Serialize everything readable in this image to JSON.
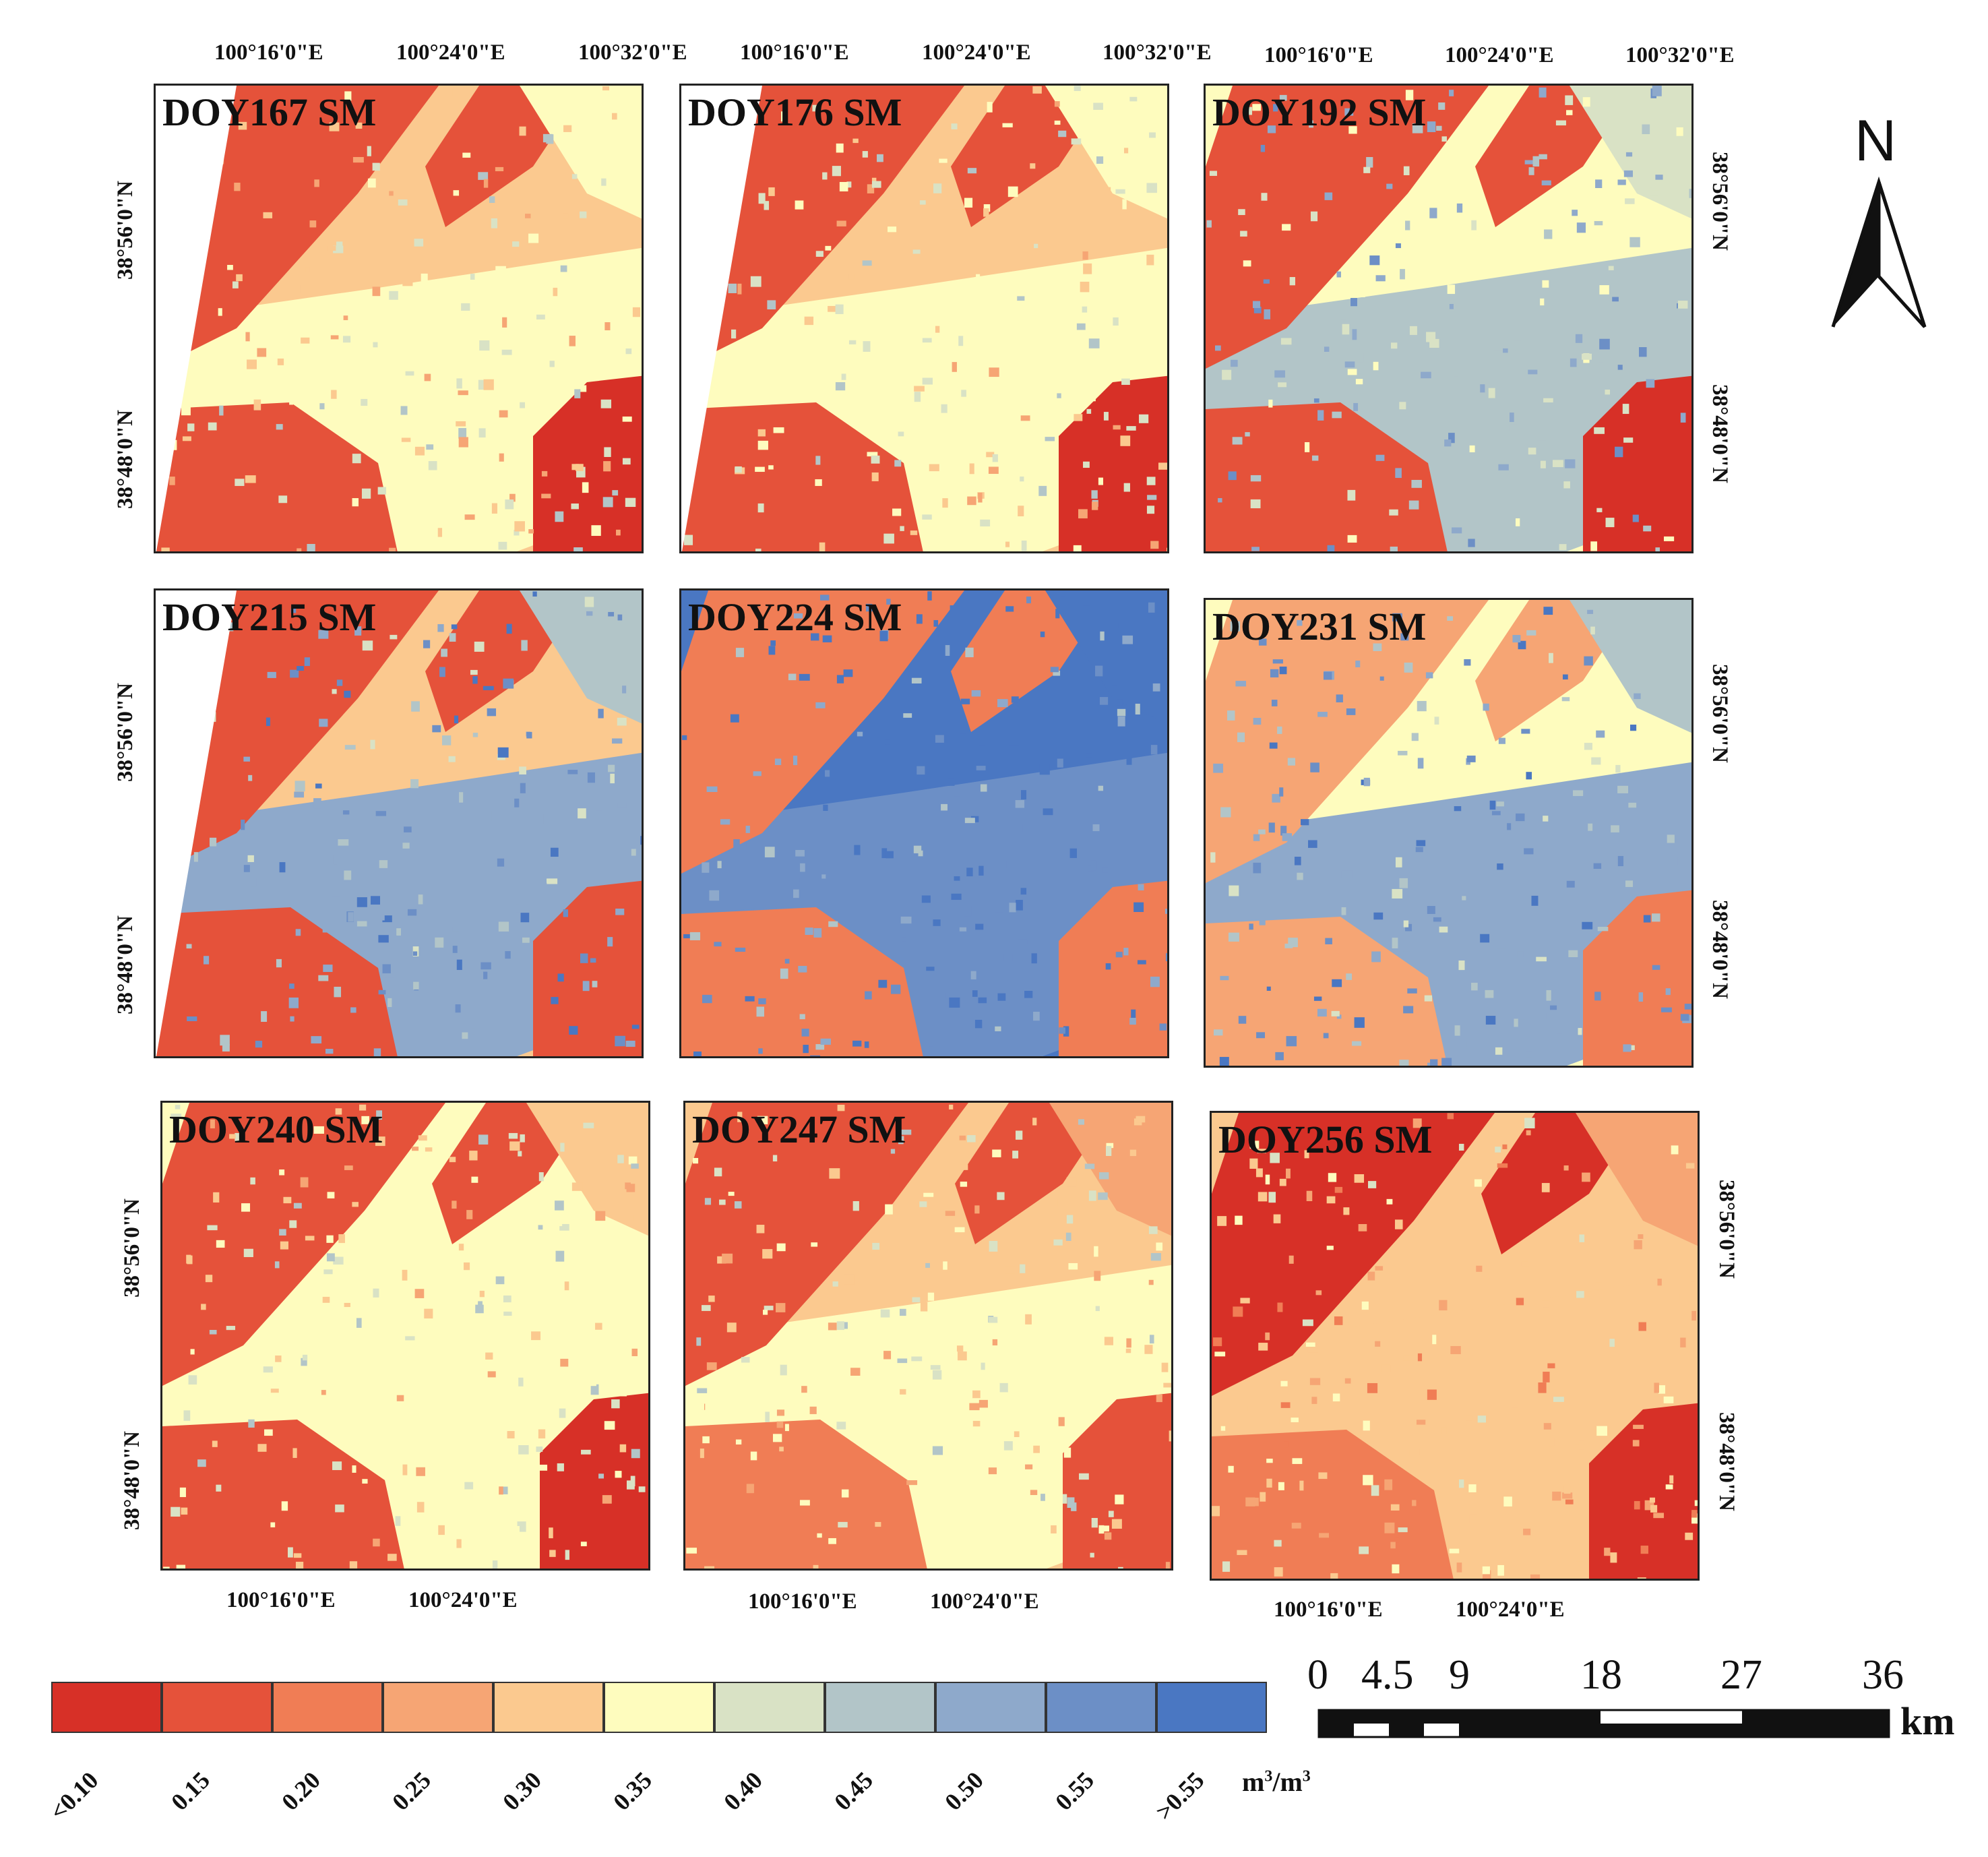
{
  "panels": [
    {
      "title": "DOY167 SM",
      "top_ticks": [
        "100°16'0\"E",
        "100°24'0\"E",
        "100°32'0\"E"
      ],
      "left_ticks": [
        "38°56'0\"N",
        "38°48'0\"N"
      ]
    },
    {
      "title": "DOY176 SM",
      "top_ticks": [
        "100°16'0\"E",
        "100°24'0\"E",
        "100°32'0\"E"
      ]
    },
    {
      "title": "DOY192 SM",
      "top_ticks": [
        "100°16'0\"E",
        "100°24'0\"E",
        "100°32'0\"E"
      ],
      "right_ticks": [
        "38°56'0\"N",
        "38°48'0\"N"
      ]
    },
    {
      "title": "DOY215 SM",
      "left_ticks": [
        "38°56'0\"N",
        "38°48'0\"N"
      ]
    },
    {
      "title": "DOY224 SM"
    },
    {
      "title": "DOY231 SM",
      "right_ticks": [
        "38°56'0\"N",
        "38°48'0\"N"
      ]
    },
    {
      "title": "DOY240 SM",
      "left_ticks": [
        "38°56'0\"N",
        "38°48'0\"N"
      ],
      "bottom_ticks": [
        "100°16'0\"E",
        "100°24'0\"E"
      ]
    },
    {
      "title": "DOY247 SM",
      "bottom_ticks": [
        "100°16'0\"E",
        "100°24'0\"E"
      ]
    },
    {
      "title": "DOY256 SM",
      "right_ticks": [
        "38°56'0\"N",
        "38°48'0\"N"
      ],
      "bottom_ticks": [
        "100°16'0\"E",
        "100°24'0\"E"
      ]
    }
  ],
  "north_arrow": {
    "label": "N"
  },
  "legend": {
    "unit_base": "m",
    "unit_exp": "3",
    "unit_sep": "/m",
    "classes": [
      {
        "color": "#d73027"
      },
      {
        "color": "#e5523a"
      },
      {
        "color": "#f07d55"
      },
      {
        "color": "#f6a574"
      },
      {
        "color": "#fbc98f"
      },
      {
        "color": "#fefcbe"
      },
      {
        "color": "#d9e2c5"
      },
      {
        "color": "#b2c5c8"
      },
      {
        "color": "#8ea9cb"
      },
      {
        "color": "#6c8fc6"
      },
      {
        "color": "#4a77c2"
      }
    ],
    "labels": [
      "<0.10",
      "0.15",
      "0.20",
      "0.25",
      "0.30",
      "0.35",
      "0.40",
      "0.45",
      "0.50",
      "0.55",
      ">0.55"
    ]
  },
  "scale_bar": {
    "ticks": [
      "0",
      "4.5",
      "9",
      "18",
      "27",
      "36"
    ],
    "unit": "km"
  }
}
